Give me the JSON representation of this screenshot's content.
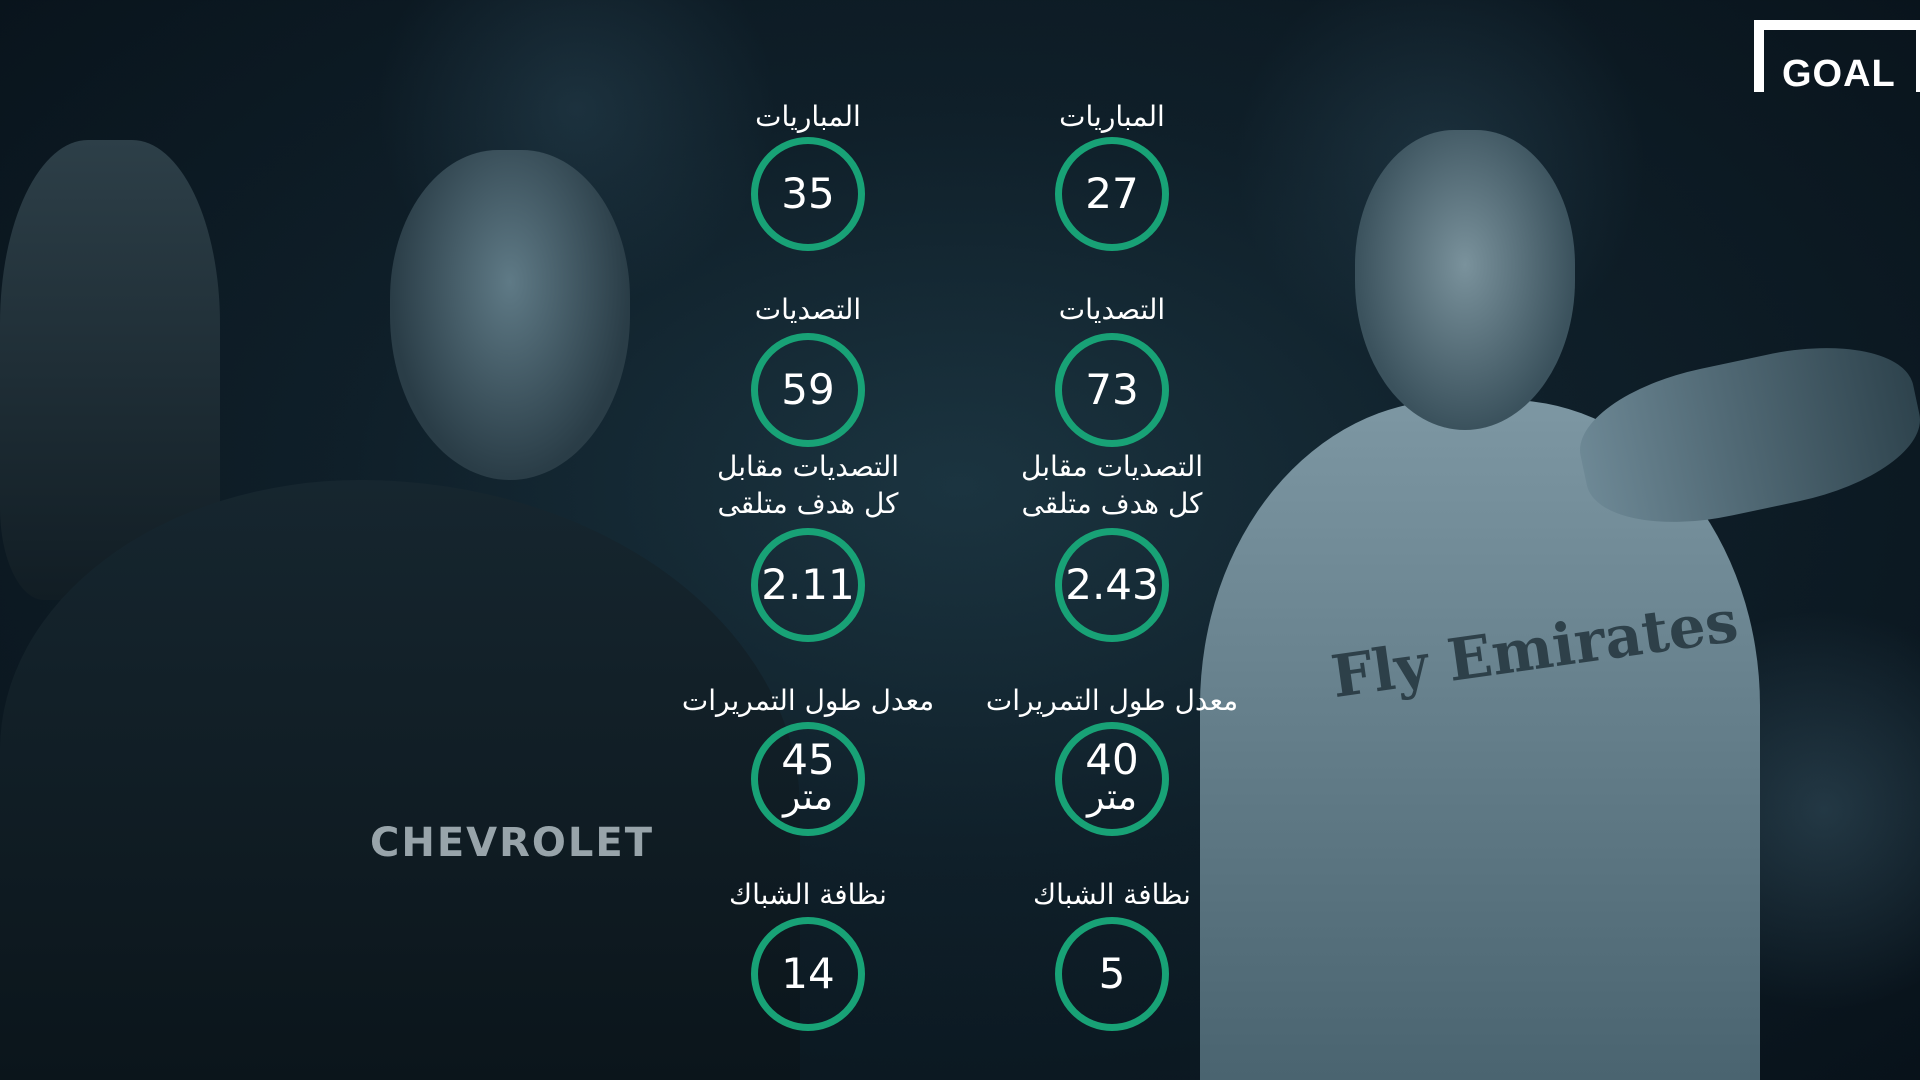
{
  "brand": {
    "logo_text": "GOAL"
  },
  "sponsors": {
    "left": "CHEVROLET",
    "right": "Fly Emirates"
  },
  "accent_color": "#18a276",
  "players": [
    {
      "side": "left",
      "stats": [
        {
          "label": "المباريات",
          "value": "35"
        },
        {
          "label": "التصديات",
          "value": "59"
        },
        {
          "label": "التصديات مقابل كل هدف متلقى",
          "value": "2.11"
        },
        {
          "label": "معدل طول التمريرات",
          "value": "45",
          "unit": "متر"
        },
        {
          "label": "نظافة الشباك",
          "value": "14"
        }
      ]
    },
    {
      "side": "right",
      "stats": [
        {
          "label": "المباريات",
          "value": "27"
        },
        {
          "label": "التصديات",
          "value": "73"
        },
        {
          "label": "التصديات مقابل كل هدف متلقى",
          "value": "2.43"
        },
        {
          "label": "معدل طول التمريرات",
          "value": "40",
          "unit": "متر"
        },
        {
          "label": "نظافة الشباك",
          "value": "5"
        }
      ]
    }
  ]
}
